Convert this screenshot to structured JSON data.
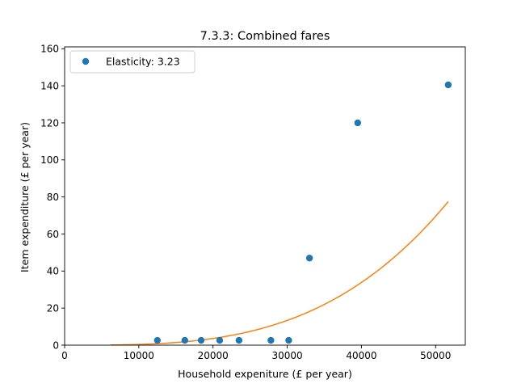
{
  "chart_data": {
    "type": "scatter",
    "title": "7.3.3: Combined fares",
    "xlabel": "Household expeniture (£ per year)",
    "ylabel": "Item expenditure (£ per year)",
    "xlim": [
      0,
      54000
    ],
    "ylim": [
      0,
      161
    ],
    "x_ticks": [
      0,
      10000,
      20000,
      30000,
      40000,
      50000
    ],
    "y_ticks": [
      0,
      20,
      40,
      60,
      80,
      100,
      120,
      140,
      160
    ],
    "grid": false,
    "legend_position": "top-left",
    "series": [
      {
        "name": "Elasticity: 3.23",
        "kind": "points",
        "color": "#1f77b4",
        "points": [
          {
            "x": 12500,
            "y": 2.6
          },
          {
            "x": 16200,
            "y": 2.6
          },
          {
            "x": 18400,
            "y": 2.6
          },
          {
            "x": 20900,
            "y": 2.6
          },
          {
            "x": 23500,
            "y": 2.6
          },
          {
            "x": 27800,
            "y": 2.6
          },
          {
            "x": 30200,
            "y": 2.6
          },
          {
            "x": 33000,
            "y": 47
          },
          {
            "x": 39500,
            "y": 120
          },
          {
            "x": 51700,
            "y": 140.5
          }
        ]
      },
      {
        "kind": "fitted-curve",
        "color": "#ff7f0e",
        "elasticity": 3.23,
        "x_start": 6200,
        "x_end": 51700,
        "y_at_end": 77.5
      }
    ]
  }
}
